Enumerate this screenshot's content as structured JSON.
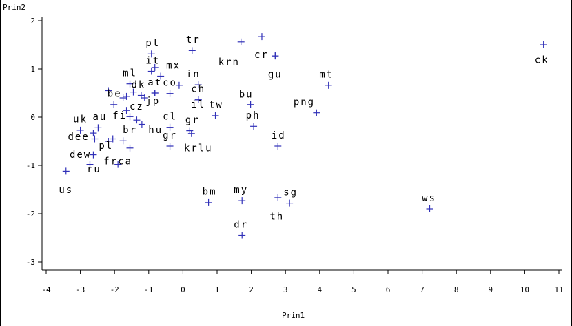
{
  "chart_data": {
    "type": "scatter",
    "xlabel": "Prin1",
    "ylabel": "Prin2",
    "xlim": [
      -4,
      11
    ],
    "ylim": [
      -3,
      2
    ],
    "x_ticks": [
      "-4",
      "-3",
      "-2",
      "-1",
      "0",
      "1",
      "2",
      "3",
      "4",
      "5",
      "6",
      "7",
      "8",
      "9",
      "10",
      "11"
    ],
    "y_ticks": [
      "-3",
      "-2",
      "-1",
      "0",
      "1",
      "2"
    ],
    "marker_color": "#3030b8",
    "points": [
      {
        "x": 10.55,
        "y": 1.5,
        "label": "ck",
        "lx": 10.5,
        "ly": 1.12
      },
      {
        "x": 7.22,
        "y": -1.9,
        "label": "ws",
        "lx": 7.2,
        "ly": -1.74
      },
      {
        "x": 4.26,
        "y": 0.66,
        "label": "mt",
        "lx": 4.2,
        "ly": 0.82
      },
      {
        "x": 3.91,
        "y": 0.09,
        "label": "png",
        "lx": 3.55,
        "ly": 0.25
      },
      {
        "x": 2.31,
        "y": 1.67,
        "label": "",
        "lx": 0,
        "ly": 0
      },
      {
        "x": 1.7,
        "y": 1.56,
        "label": "krn",
        "lx": 1.35,
        "ly": 1.08
      },
      {
        "x": 2.7,
        "y": 1.27,
        "label": "cr",
        "lx": 2.3,
        "ly": 1.23
      },
      {
        "x": 2.7,
        "y": 1.27,
        "label": "gu",
        "lx": 2.7,
        "ly": 0.82
      },
      {
        "x": 1.98,
        "y": 0.26,
        "label": "bu",
        "lx": 1.85,
        "ly": 0.41
      },
      {
        "x": 2.07,
        "y": -0.19,
        "label": "ph",
        "lx": 2.05,
        "ly": -0.03
      },
      {
        "x": 2.78,
        "y": -0.6,
        "label": "id",
        "lx": 2.8,
        "ly": -0.44
      },
      {
        "x": 2.78,
        "y": -1.67,
        "label": "th",
        "lx": 2.75,
        "ly": -2.12
      },
      {
        "x": 3.12,
        "y": -1.78,
        "label": "sg",
        "lx": 3.15,
        "ly": -1.62
      },
      {
        "x": 1.73,
        "y": -1.73,
        "label": "my",
        "lx": 1.7,
        "ly": -1.57
      },
      {
        "x": 1.73,
        "y": -2.45,
        "label": "dr",
        "lx": 1.7,
        "ly": -2.29
      },
      {
        "x": 0.75,
        "y": -1.77,
        "label": "bm",
        "lx": 0.78,
        "ly": -1.61
      },
      {
        "x": 0.27,
        "y": 1.38,
        "label": "tr",
        "lx": 0.3,
        "ly": 1.54
      },
      {
        "x": 0.45,
        "y": 0.67,
        "label": "in",
        "lx": 0.3,
        "ly": 0.83
      },
      {
        "x": 0.45,
        "y": 0.36,
        "label": "ch",
        "lx": 0.45,
        "ly": 0.52
      },
      {
        "x": 0.45,
        "y": 0.36,
        "label": "il",
        "lx": 0.45,
        "ly": 0.2
      },
      {
        "x": 0.95,
        "y": 0.03,
        "label": "tw",
        "lx": 0.97,
        "ly": 0.19
      },
      {
        "x": 0.2,
        "y": -0.28,
        "label": "gr",
        "lx": 0.28,
        "ly": -0.12
      },
      {
        "x": 0.25,
        "y": -0.34,
        "label": "krlu",
        "lx": 0.45,
        "ly": -0.71
      },
      {
        "x": -0.38,
        "y": -0.6,
        "label": "gr",
        "lx": -0.38,
        "ly": -0.44
      },
      {
        "x": -0.38,
        "y": -0.21,
        "label": "cl",
        "lx": -0.38,
        "ly": -0.05
      },
      {
        "x": -0.38,
        "y": 0.49,
        "label": "co",
        "lx": -0.38,
        "ly": 0.65
      },
      {
        "x": -0.11,
        "y": 0.66,
        "label": "",
        "lx": 0,
        "ly": 0
      },
      {
        "x": -0.65,
        "y": 0.85,
        "label": "mx",
        "lx": -0.28,
        "ly": 1.01
      },
      {
        "x": -0.82,
        "y": 1.03,
        "label": "",
        "lx": 0,
        "ly": 0
      },
      {
        "x": -0.92,
        "y": 1.31,
        "label": "pt",
        "lx": -0.88,
        "ly": 1.47
      },
      {
        "x": -0.92,
        "y": 0.95,
        "label": "it",
        "lx": -0.88,
        "ly": 1.11
      },
      {
        "x": -0.82,
        "y": 0.5,
        "label": "at",
        "lx": -0.82,
        "ly": 0.66
      },
      {
        "x": -0.82,
        "y": 0.5,
        "label": "jp",
        "lx": -0.88,
        "ly": 0.27
      },
      {
        "x": -1.12,
        "y": 0.4,
        "label": "",
        "lx": 0,
        "ly": 0
      },
      {
        "x": -1.22,
        "y": 0.45,
        "label": "dk",
        "lx": -1.3,
        "ly": 0.61
      },
      {
        "x": -1.55,
        "y": 0.69,
        "label": "ml",
        "lx": -1.55,
        "ly": 0.85
      },
      {
        "x": -1.45,
        "y": 0.52,
        "label": "",
        "lx": 0,
        "ly": 0
      },
      {
        "x": -1.65,
        "y": 0.43,
        "label": "",
        "lx": 0,
        "ly": 0
      },
      {
        "x": -1.75,
        "y": 0.4,
        "label": "",
        "lx": 0,
        "ly": 0
      },
      {
        "x": -2.18,
        "y": 0.55,
        "label": "be",
        "lx": -2.0,
        "ly": 0.42
      },
      {
        "x": -2.02,
        "y": 0.26,
        "label": "",
        "lx": 0,
        "ly": 0
      },
      {
        "x": -1.65,
        "y": 0.14,
        "label": "cz",
        "lx": -1.35,
        "ly": 0.16
      },
      {
        "x": -1.55,
        "y": 0.01,
        "label": "fi",
        "lx": -1.85,
        "ly": -0.03
      },
      {
        "x": -1.35,
        "y": -0.06,
        "label": "",
        "lx": 0,
        "ly": 0
      },
      {
        "x": -1.2,
        "y": -0.15,
        "label": "hu",
        "lx": -0.8,
        "ly": -0.33
      },
      {
        "x": -2.48,
        "y": -0.22,
        "label": "au",
        "lx": -2.43,
        "ly": -0.06
      },
      {
        "x": -3.0,
        "y": -0.27,
        "label": "uk",
        "lx": -3.0,
        "ly": -0.11
      },
      {
        "x": -2.62,
        "y": -0.33,
        "label": "",
        "lx": 0,
        "ly": 0
      },
      {
        "x": -2.58,
        "y": -0.45,
        "label": "dee",
        "lx": -3.05,
        "ly": -0.47
      },
      {
        "x": -1.75,
        "y": -0.49,
        "label": "br",
        "lx": -1.55,
        "ly": -0.33
      },
      {
        "x": -1.55,
        "y": -0.64,
        "label": "",
        "lx": 0,
        "ly": 0
      },
      {
        "x": -2.18,
        "y": -0.5,
        "label": "pl",
        "lx": -2.25,
        "ly": -0.66
      },
      {
        "x": -2.05,
        "y": -0.45,
        "label": "",
        "lx": 0,
        "ly": 0
      },
      {
        "x": -2.62,
        "y": -0.78,
        "label": "dew",
        "lx": -3.0,
        "ly": -0.84
      },
      {
        "x": -2.72,
        "y": -0.98,
        "label": "ru",
        "lx": -2.6,
        "ly": -1.14
      },
      {
        "x": -1.9,
        "y": -0.98,
        "label": "frca",
        "lx": -1.9,
        "ly": -0.98
      },
      {
        "x": -3.42,
        "y": -1.12,
        "label": "us",
        "lx": -3.42,
        "ly": -1.57
      }
    ]
  }
}
